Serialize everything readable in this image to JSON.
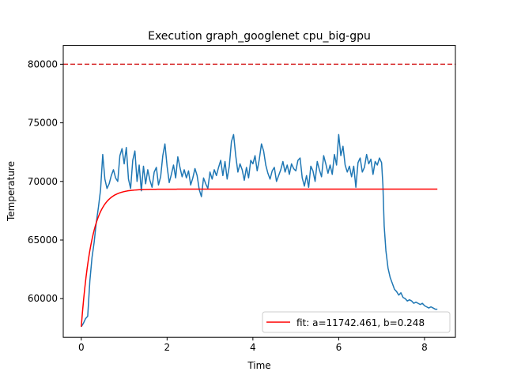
{
  "chart_data": {
    "type": "line",
    "title": "Execution graph_googlenet cpu_big-gpu",
    "xlabel": "Time",
    "ylabel": "Temperature",
    "xlim": [
      -0.42,
      8.72
    ],
    "ylim": [
      56700,
      81600
    ],
    "xticks": [
      0,
      2,
      4,
      6,
      8
    ],
    "yticks": [
      60000,
      65000,
      70000,
      75000,
      80000
    ],
    "grid": false,
    "legend": {
      "placement": "lower-right",
      "entries": [
        "fit: a=11742.461, b=0.248"
      ]
    },
    "threshold": {
      "y": 80000,
      "color": "#d62728",
      "style": "dashed"
    },
    "series": [
      {
        "color": "#1f77b4",
        "x": [
          0,
          0.05,
          0.1,
          0.15,
          0.2,
          0.25,
          0.3,
          0.35,
          0.4,
          0.45,
          0.5,
          0.55,
          0.6,
          0.65,
          0.7,
          0.75,
          0.8,
          0.85,
          0.9,
          0.95,
          1.0,
          1.05,
          1.1,
          1.15,
          1.2,
          1.25,
          1.3,
          1.35,
          1.4,
          1.45,
          1.5,
          1.55,
          1.6,
          1.65,
          1.7,
          1.75,
          1.8,
          1.85,
          1.9,
          1.95,
          2.0,
          2.05,
          2.1,
          2.15,
          2.2,
          2.25,
          2.3,
          2.35,
          2.4,
          2.45,
          2.5,
          2.55,
          2.6,
          2.65,
          2.7,
          2.75,
          2.8,
          2.85,
          2.9,
          2.95,
          3.0,
          3.05,
          3.1,
          3.15,
          3.2,
          3.25,
          3.3,
          3.35,
          3.4,
          3.45,
          3.5,
          3.55,
          3.6,
          3.65,
          3.7,
          3.75,
          3.8,
          3.85,
          3.9,
          3.95,
          4.0,
          4.05,
          4.1,
          4.15,
          4.2,
          4.25,
          4.3,
          4.35,
          4.4,
          4.45,
          4.5,
          4.55,
          4.6,
          4.65,
          4.7,
          4.75,
          4.8,
          4.85,
          4.9,
          4.95,
          5.0,
          5.05,
          5.1,
          5.15,
          5.2,
          5.25,
          5.3,
          5.35,
          5.4,
          5.45,
          5.5,
          5.55,
          5.6,
          5.65,
          5.7,
          5.75,
          5.8,
          5.85,
          5.9,
          5.95,
          6.0,
          6.05,
          6.1,
          6.15,
          6.2,
          6.25,
          6.3,
          6.35,
          6.4,
          6.45,
          6.5,
          6.55,
          6.6,
          6.65,
          6.7,
          6.75,
          6.8,
          6.85,
          6.9,
          6.95,
          7.0,
          7.03,
          7.06,
          7.1,
          7.15,
          7.2,
          7.25,
          7.3,
          7.35,
          7.4,
          7.45,
          7.5,
          7.55,
          7.6,
          7.65,
          7.7,
          7.75,
          7.8,
          7.85,
          7.9,
          7.95,
          8.0,
          8.05,
          8.1,
          8.15,
          8.2,
          8.25,
          8.3
        ],
        "values": [
          57600,
          57900,
          58300,
          58500,
          61500,
          63500,
          64800,
          66500,
          67800,
          69300,
          72300,
          70200,
          69400,
          69800,
          70500,
          71000,
          70300,
          70000,
          72200,
          72800,
          71500,
          72900,
          70200,
          69400,
          71800,
          72600,
          70000,
          71400,
          69200,
          71300,
          69800,
          71000,
          70100,
          69500,
          70800,
          71200,
          69700,
          70400,
          72200,
          73200,
          71300,
          69900,
          70600,
          71400,
          70300,
          72100,
          71200,
          70400,
          71000,
          70300,
          70900,
          69700,
          70300,
          71100,
          70500,
          69300,
          68700,
          70300,
          69800,
          69400,
          70800,
          70200,
          71000,
          70500,
          71200,
          71800,
          70500,
          71700,
          70200,
          71300,
          73400,
          74000,
          72200,
          70800,
          71500,
          71000,
          70100,
          71200,
          70300,
          71800,
          71500,
          72200,
          70900,
          71900,
          73200,
          72600,
          71400,
          70700,
          70200,
          70900,
          71200,
          70000,
          70500,
          71000,
          71700,
          70800,
          71400,
          70600,
          71500,
          71100,
          70900,
          71800,
          72000,
          70300,
          69600,
          70500,
          69500,
          71300,
          70900,
          70000,
          71700,
          71000,
          70400,
          72200,
          71500,
          70700,
          71400,
          70600,
          72300,
          71400,
          74000,
          72200,
          73000,
          71400,
          70800,
          71300,
          70400,
          71300,
          69500,
          71600,
          72000,
          70800,
          71200,
          72300,
          71500,
          71900,
          70600,
          71700,
          71400,
          72000,
          71600,
          69700,
          66200,
          64100,
          62600,
          61800,
          61300,
          60800,
          60600,
          60300,
          60500,
          60100,
          60000,
          59800,
          59900,
          59800,
          59600,
          59700,
          59600,
          59500,
          59600,
          59400,
          59300,
          59200,
          59300,
          59200,
          59100,
          59100
        ]
      },
      {
        "name": "fit: a=11742.461, b=0.248",
        "color": "#ff0000",
        "model": "a*(1-exp(-t/b)) + y0",
        "y0": 57600,
        "a": 11742.461,
        "b": 0.248,
        "x_range": [
          0,
          8.3
        ]
      }
    ]
  }
}
